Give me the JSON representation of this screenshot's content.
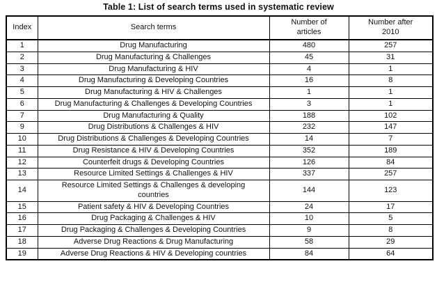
{
  "title": "Table 1: List of search terms used in systematic review",
  "table": {
    "columns": [
      "Index",
      "Search terms",
      "Number of\narticles",
      "Number after\n2010"
    ],
    "rows": [
      {
        "index": "1",
        "term": "Drug Manufacturing",
        "articles": "480",
        "after2010": "257"
      },
      {
        "index": "2",
        "term": "Drug Manufacturing & Challenges",
        "articles": "45",
        "after2010": "31"
      },
      {
        "index": "3",
        "term": "Drug Manufacturing & HIV",
        "articles": "4",
        "after2010": "1"
      },
      {
        "index": "4",
        "term": "Drug Manufacturing & Developing Countries",
        "articles": "16",
        "after2010": "8"
      },
      {
        "index": "5",
        "term": "Drug Manufacturing & HIV & Challenges",
        "articles": "1",
        "after2010": "1"
      },
      {
        "index": "6",
        "term": "Drug Manufacturing & Challenges & Developing Countries",
        "articles": "3",
        "after2010": "1"
      },
      {
        "index": "7",
        "term": "Drug Manufacturing & Quality",
        "articles": "188",
        "after2010": "102"
      },
      {
        "index": "9",
        "term": "Drug Distributions & Challenges & HIV",
        "articles": "232",
        "after2010": "147"
      },
      {
        "index": "10",
        "term": "Drug Distributions & Challenges & Developing Countries",
        "articles": "14",
        "after2010": "7"
      },
      {
        "index": "11",
        "term": "Drug Resistance & HIV & Developing Countries",
        "articles": "352",
        "after2010": "189"
      },
      {
        "index": "12",
        "term": "Counterfeit drugs & Developing Countries",
        "articles": "126",
        "after2010": "84"
      },
      {
        "index": "13",
        "term": "Resource Limited Settings & Challenges & HIV",
        "articles": "337",
        "after2010": "257"
      },
      {
        "index": "14",
        "term": "Resource Limited Settings & Challenges & developing\ncountries",
        "articles": "144",
        "after2010": "123"
      },
      {
        "index": "15",
        "term": "Patient safety & HIV & Developing Countries",
        "articles": "24",
        "after2010": "17"
      },
      {
        "index": "16",
        "term": "Drug Packaging & Challenges & HIV",
        "articles": "10",
        "after2010": "5"
      },
      {
        "index": "17",
        "term": "Drug Packaging & Challenges & Developing Countries",
        "articles": "9",
        "after2010": "8"
      },
      {
        "index": "18",
        "term": "Adverse Drug Reactions & Drug Manufacturing",
        "articles": "58",
        "after2010": "29"
      },
      {
        "index": "19",
        "term": "Adverse Drug Reactions & HIV & Developing countries",
        "articles": "84",
        "after2010": "64"
      }
    ]
  }
}
